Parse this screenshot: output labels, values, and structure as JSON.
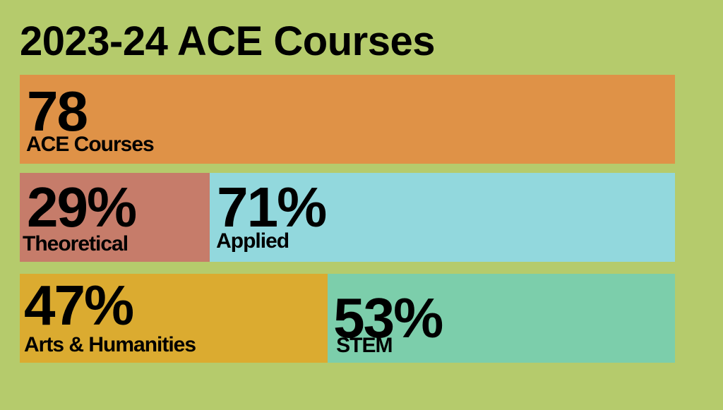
{
  "title": "2023-24 ACE Courses",
  "colors": {
    "background": "#b5cb6c",
    "total": "#df9247",
    "theoretical": "#c67c6a",
    "applied": "#92d8dd",
    "arts_humanities": "#dbab30",
    "stem": "#7cceab"
  },
  "chart_data": {
    "type": "bar",
    "title": "2023-24 ACE Courses",
    "rows": [
      {
        "segments": [
          {
            "value": "78",
            "label": "ACE Courses",
            "share": 100,
            "color": "#df9247"
          }
        ]
      },
      {
        "segments": [
          {
            "value": "29%",
            "label": "Theoretical",
            "share": 29,
            "color": "#c67c6a"
          },
          {
            "value": "71%",
            "label": "Applied",
            "share": 71,
            "color": "#92d8dd"
          }
        ]
      },
      {
        "segments": [
          {
            "value": "47%",
            "label": "Arts & Humanities",
            "share": 47,
            "color": "#dbab30"
          },
          {
            "value": "53%",
            "label": "STEM",
            "share": 53,
            "color": "#7cceab"
          }
        ]
      }
    ]
  }
}
